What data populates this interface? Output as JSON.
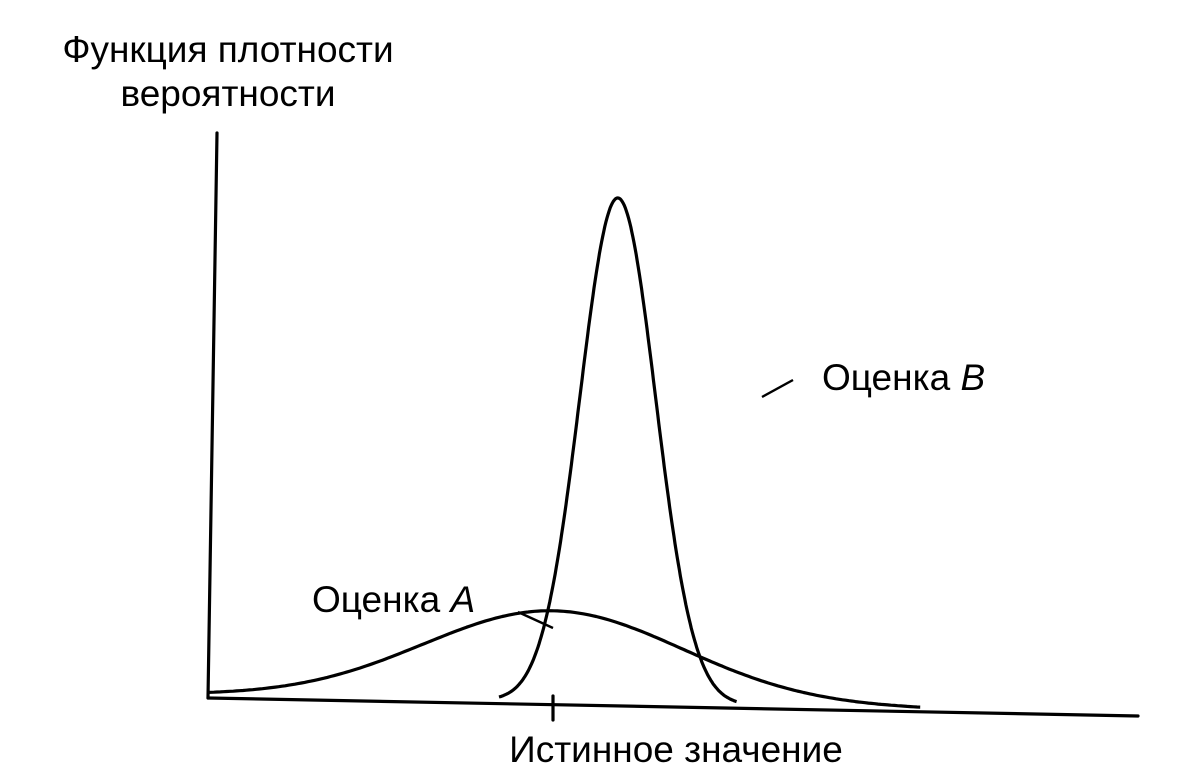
{
  "chart_data": {
    "type": "line",
    "ylabel_line1": "Функция плотности",
    "ylabel_line2": "вероятности",
    "xlabel": "Истинное значение",
    "grid": false,
    "xlim": [
      0,
      10
    ],
    "ylim": [
      0,
      1
    ],
    "true_value_x": 5,
    "series": [
      {
        "name": "Оценка ",
        "name_italic": "A",
        "label": "Оценка A",
        "mean": 5,
        "sd": 1.2,
        "range": [
          1.8,
          8.4
        ],
        "peak": 0.18
      },
      {
        "name": "Оценка ",
        "name_italic": "B",
        "label": "Оценка B",
        "mean": 5.6,
        "sd": 0.35,
        "range": [
          4.5,
          6.7
        ],
        "peak": 1.0
      }
    ]
  }
}
